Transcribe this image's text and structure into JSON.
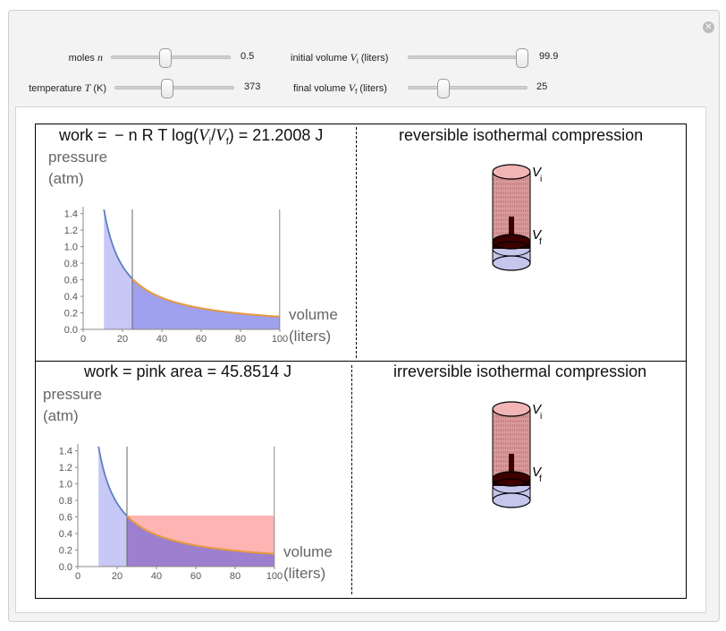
{
  "controls": {
    "moles": {
      "label": "moles",
      "symbol": "n",
      "value": "0.5",
      "fraction": 0.43
    },
    "temperature": {
      "label": "temperature",
      "symbol": "T",
      "unit": "(K)",
      "value": "373",
      "fraction": 0.45
    },
    "initial_volume": {
      "label": "initial volume",
      "symbol": "V",
      "subscript": "i",
      "unit": "(liters)",
      "value": "99.9",
      "fraction": 1.0
    },
    "final_volume": {
      "label": "final volume",
      "symbol": "V",
      "subscript": "f",
      "unit": "(liters)",
      "value": "25",
      "fraction": 0.31
    }
  },
  "panels": {
    "top_left": {
      "title_prefix": "work =  − n R T log(",
      "vi": "V",
      "vi_sub": "i",
      "slash": "/",
      "vf": "V",
      "vf_sub": "f",
      "title_suffix": ") = 21.2008 J"
    },
    "top_right": {
      "title": "reversible isothermal compression",
      "label_i": "V",
      "label_i_sub": "i",
      "label_f": "V",
      "label_f_sub": "f"
    },
    "bottom_left": {
      "title": "work = pink area = 45.8514 J"
    },
    "bottom_right": {
      "title": "irreversible isothermal compression",
      "label_i": "V",
      "label_i_sub": "i",
      "label_f": "V",
      "label_f_sub": "f"
    }
  },
  "axes": {
    "y_label_line1": "pressure",
    "y_label_line2": "(atm)",
    "x_label_line1": "volume",
    "x_label_line2": "(liters)"
  },
  "colors": {
    "blue_fill": "#c8c8f6",
    "area_fill": "#9fa0ee",
    "curve": "#5b7fc4",
    "orange": "#e89a3c",
    "pink": "#ffb4b4",
    "purple": "#9d7fcf"
  },
  "chart_data": [
    {
      "type": "area",
      "title": "work = − n R T log(Vi/Vf) = 21.2008 J",
      "xlabel": "volume (liters)",
      "ylabel": "pressure (atm)",
      "xlim": [
        0,
        100
      ],
      "ylim": [
        0,
        1.45
      ],
      "x_ticks": [
        "0",
        "20",
        "40",
        "60",
        "80",
        "100"
      ],
      "y_ticks": [
        "0.0",
        "0.2",
        "0.4",
        "0.6",
        "0.8",
        "1.0",
        "1.2",
        "1.4"
      ],
      "nRT": 15.3,
      "V_initial": 99.9,
      "V_final": 25,
      "series": [
        {
          "name": "isotherm",
          "function": "P = nRT / V"
        }
      ]
    },
    {
      "type": "area",
      "title": "work = pink area = 45.8514 J",
      "xlabel": "volume (liters)",
      "ylabel": "pressure (atm)",
      "xlim": [
        0,
        100
      ],
      "ylim": [
        0,
        1.45
      ],
      "x_ticks": [
        "0",
        "20",
        "40",
        "60",
        "80",
        "100"
      ],
      "y_ticks": [
        "0.0",
        "0.2",
        "0.4",
        "0.6",
        "0.8",
        "1.0",
        "1.2",
        "1.4"
      ],
      "nRT": 15.3,
      "V_initial": 99.9,
      "V_final": 25,
      "P_external": 0.612,
      "series": [
        {
          "name": "isotherm",
          "function": "P = nRT / V"
        }
      ]
    }
  ]
}
